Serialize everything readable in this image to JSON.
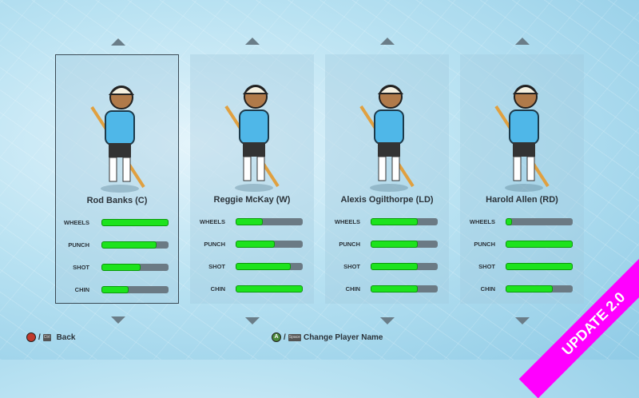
{
  "players": [
    {
      "name": "Rod Banks (C)",
      "selected": true,
      "stats": [
        100,
        82,
        58,
        40
      ]
    },
    {
      "name": "Reggie McKay (W)",
      "selected": false,
      "stats": [
        40,
        58,
        82,
        100
      ]
    },
    {
      "name": "Alexis Ogilthorpe (LD)",
      "selected": false,
      "stats": [
        70,
        70,
        70,
        70
      ]
    },
    {
      "name": "Harold Allen (RD)",
      "selected": false,
      "stats": [
        10,
        100,
        100,
        70
      ]
    }
  ],
  "stat_labels": [
    "WHEELS",
    "PUNCH",
    "SHOT",
    "CHIN"
  ],
  "hints": {
    "back_label": "Back",
    "back_button": "B",
    "back_key": "Ctrl",
    "change_label": "Change Player Name",
    "change_button": "A",
    "change_key": "Space",
    "sep": "/"
  },
  "banner": "UPDATE 2.0",
  "colors": {
    "stat_fill": "#1de31d",
    "stat_track": "#6b7a84",
    "banner": "#ff00ff",
    "jersey": "#4fb7e8"
  }
}
